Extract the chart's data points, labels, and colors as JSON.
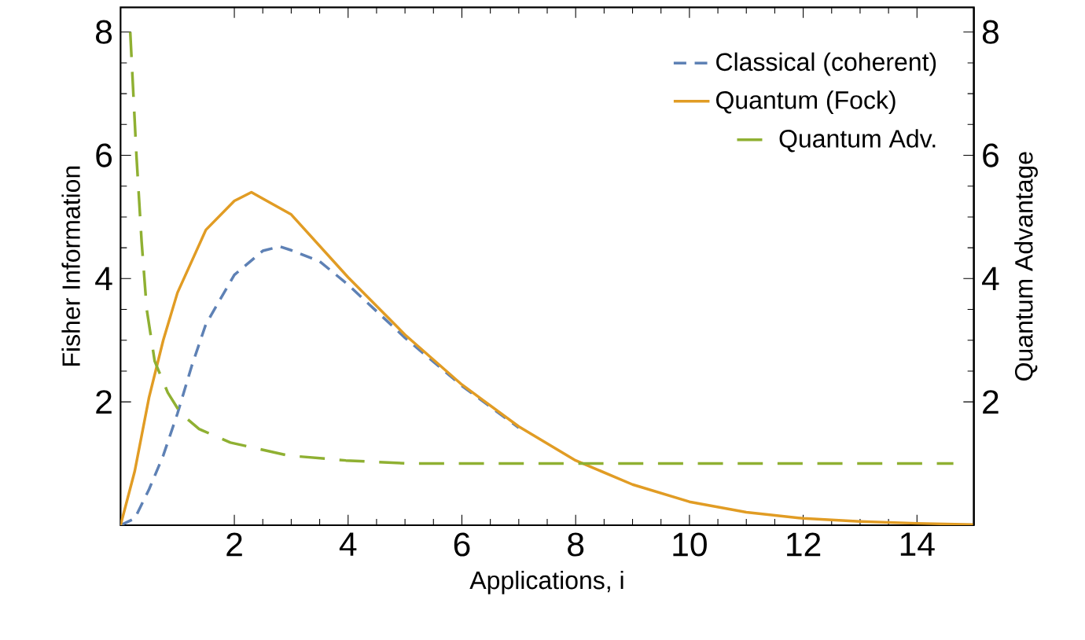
{
  "chart_data": {
    "type": "line",
    "xlabel": "Applications, i",
    "ylabel": "Fisher Information",
    "y2label": "Quantum Advantage",
    "xlim": [
      0,
      15
    ],
    "xticks": [
      2,
      4,
      6,
      8,
      10,
      12,
      14
    ],
    "ylim": [
      0,
      8.4
    ],
    "yticks": [
      2,
      4,
      6,
      8
    ],
    "y2lim": [
      0,
      8.4
    ],
    "y2ticks": [
      2,
      4,
      6,
      8
    ],
    "grid": false,
    "legend": "top right",
    "marker": "none",
    "series": [
      {
        "name": "Classical (coherent)",
        "color": "#5e81b5",
        "line_style": "dashed",
        "x": [
          0,
          0.25,
          0.5,
          0.75,
          1,
          1.25,
          1.5,
          2,
          2.5,
          2.8,
          3,
          3.5,
          4,
          5,
          6,
          7
        ],
        "values": [
          0,
          0.11,
          0.58,
          1.13,
          1.81,
          2.58,
          3.26,
          4.06,
          4.45,
          4.52,
          4.46,
          4.28,
          3.9,
          3.04,
          2.26,
          1.58
        ]
      },
      {
        "name": "Quantum (Fock)",
        "color": "#e19c24",
        "line_style": "solid",
        "x": [
          0,
          0.25,
          0.5,
          0.75,
          1,
          1.5,
          2,
          2.3,
          3,
          4,
          5,
          6,
          7,
          8,
          9,
          10,
          11,
          12,
          13,
          14,
          15
        ],
        "values": [
          0,
          0.88,
          2.07,
          3.0,
          3.77,
          4.79,
          5.26,
          5.4,
          5.04,
          4.02,
          3.09,
          2.28,
          1.6,
          1.05,
          0.66,
          0.38,
          0.21,
          0.11,
          0.06,
          0.03,
          0.01
        ]
      },
      {
        "name": "Quantum Adv.",
        "color": "#8fb032",
        "line_style": "dashed",
        "axis": "y2",
        "x": [
          0.17,
          0.28,
          0.37,
          0.46,
          0.6,
          0.83,
          1.06,
          1.38,
          1.93,
          2.95,
          3.96,
          5.06,
          8,
          11,
          14.64
        ],
        "values": [
          8.0,
          5.98,
          4.6,
          3.5,
          2.66,
          2.15,
          1.81,
          1.56,
          1.34,
          1.13,
          1.05,
          1.0,
          1.0,
          1.0,
          1.0
        ]
      }
    ]
  }
}
